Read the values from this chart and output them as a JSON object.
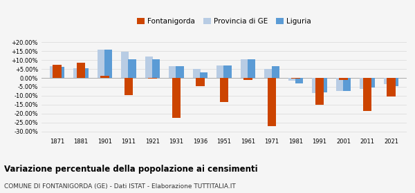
{
  "years": [
    1871,
    1881,
    1901,
    1911,
    1921,
    1931,
    1936,
    1951,
    1961,
    1971,
    1981,
    1991,
    2001,
    2011,
    2021
  ],
  "fontanigorda": [
    7.5,
    8.5,
    1.0,
    -9.5,
    -0.5,
    -22.5,
    -4.5,
    -13.5,
    -1.0,
    -27.0,
    -0.5,
    -15.0,
    -1.0,
    -18.5,
    -10.5
  ],
  "provincia_ge": [
    6.5,
    5.5,
    16.0,
    14.5,
    12.0,
    6.5,
    5.0,
    7.0,
    10.5,
    5.0,
    -1.5,
    -8.5,
    -7.5,
    -6.0,
    -3.5
  ],
  "liguria": [
    6.0,
    5.5,
    16.0,
    10.5,
    10.5,
    6.5,
    3.0,
    7.0,
    10.5,
    6.5,
    -3.0,
    -8.0,
    -7.5,
    -5.5,
    -4.5
  ],
  "fontanigorda_color": "#cc4400",
  "provincia_ge_color": "#b8cce4",
  "liguria_color": "#5b9bd5",
  "title_bold": "Variazione percentuale della popolazione ai censimenti",
  "subtitle": "COMUNE DI FONTANIGORDA (GE) - Dati ISTAT - Elaborazione TUTTITALIA.IT",
  "legend_labels": [
    "Fontanigorda",
    "Provincia di GE",
    "Liguria"
  ],
  "ylim": [
    -32,
    22
  ],
  "yticks": [
    -30,
    -25,
    -20,
    -15,
    -10,
    -5,
    0,
    5,
    10,
    15,
    20
  ],
  "background_color": "#f5f5f5",
  "grid_color": "#dddddd",
  "bar_width": 0.3
}
